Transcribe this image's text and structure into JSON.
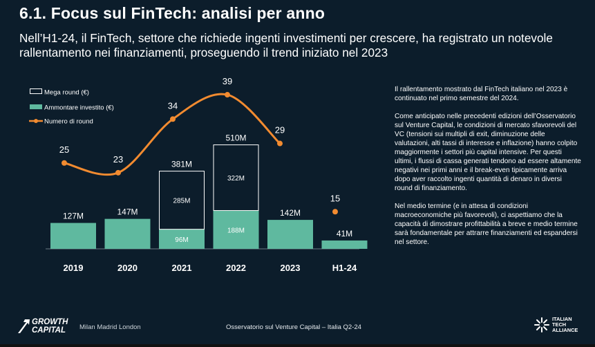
{
  "slide": {
    "title": "6.1. Focus sul FinTech: analisi per anno",
    "subtitle": "Nell’H1-24, il FinTech, settore che richiede ingenti investimenti per crescere, ha registrato un notevole rallentamento nei finanziamenti, proseguendo il trend iniziato nel 2023"
  },
  "side_text": {
    "p1": "Il rallentamento mostrato dal FinTech italiano nel 2023 è continuato nel primo semestre del 2024.",
    "p2": "Come anticipato nelle precedenti edizioni dell’Osservatorio sul Venture Capital, le condizioni di mercato sfavorevoli del VC (tensioni sui multipli di exit, diminuzione delle valutazioni, alti tassi di interesse e inflazione) hanno colpito maggiormente i settori più capital intensive. Per questi ultimi, i flussi di cassa generati tendono ad essere altamente negativi nei primi anni e il break-even tipicamente arriva dopo aver raccolto ingenti quantità di denaro in diversi round di finanziamento.",
    "p3": "Nel medio termine (e in attesa di condizioni macroeconomiche più favorevoli), ci aspettiamo che la capacità di dimostrare profittabilità a breve e medio termine sarà fondamentale per attrarre finanziamenti ed espandersi nel settore."
  },
  "footer": {
    "logo_line1": "GROWTH",
    "logo_line2": "CAPITAL",
    "cities": "Milan Madrid London",
    "center": "Osservatorio sul Venture Capital – Italia Q2-24",
    "ita_line1": "ITALIAN",
    "ita_line2": "TECH",
    "ita_line3": "ALLIANCE",
    "logo_icon": "growth-capital-arrow-icon",
    "ita_icon": "italian-tech-alliance-star-icon"
  },
  "colors": {
    "background": "#0c1d2b",
    "bar_fill": "#5fb99f",
    "line": "#f28b30",
    "text": "#ffffff"
  },
  "chart_data": {
    "type": "bar",
    "categories": [
      "2019",
      "2020",
      "2021",
      "2022",
      "2023",
      "H1-24"
    ],
    "legend": [
      {
        "key": "mega",
        "label": "Mega round (€)"
      },
      {
        "key": "amount",
        "label": "Ammontare investito (€)"
      },
      {
        "key": "rounds",
        "label": "Numero di round"
      }
    ],
    "legend_position": "top-left",
    "series": [
      {
        "name": "Ammontare investito (€)",
        "key": "amount",
        "values": [
          127,
          147,
          96,
          188,
          142,
          41
        ],
        "labels": [
          "127M",
          "147M",
          "96M",
          "188M",
          "142M",
          "41M"
        ]
      },
      {
        "name": "Mega round (€)",
        "key": "mega",
        "values": [
          0,
          0,
          285,
          322,
          0,
          0
        ],
        "labels": [
          "",
          "",
          "285M",
          "322M",
          "",
          ""
        ]
      },
      {
        "name": "Numero di round",
        "key": "rounds",
        "values": [
          25,
          23,
          34,
          39,
          29,
          15
        ],
        "labels": [
          "25",
          "23",
          "34",
          "39",
          "29",
          "15"
        ]
      }
    ],
    "totals": [
      "",
      "",
      "381M",
      "510M",
      "",
      ""
    ],
    "rounds_line_connects": [
      true,
      true,
      true,
      true,
      true,
      false
    ],
    "grid": false
  }
}
